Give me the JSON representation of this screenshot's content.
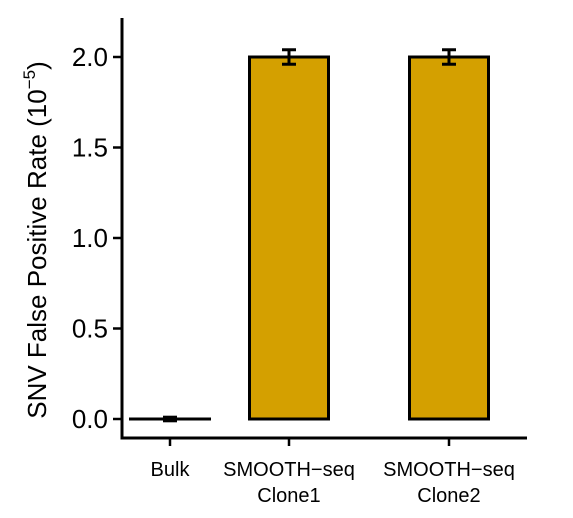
{
  "chart_data": {
    "type": "bar",
    "categories": [
      [
        "Bulk"
      ],
      [
        "SMOOTH−seq",
        "Clone1"
      ],
      [
        "SMOOTH−seq",
        "Clone2"
      ]
    ],
    "values": [
      0.0,
      2.0,
      2.0
    ],
    "error": [
      0.01,
      0.04,
      0.04
    ],
    "ylabel": "SNV False Positive Rate (10",
    "ylabel_exponent": "−5",
    "ylabel_close": ")",
    "ylim": [
      0.0,
      2.2
    ],
    "yticks": [
      0.0,
      0.5,
      1.0,
      1.5,
      2.0
    ],
    "ytick_labels": [
      "0.0",
      "0.5",
      "1.0",
      "1.5",
      "2.0"
    ],
    "grid": false,
    "colors": {
      "bar": "#D4A000",
      "stroke": "#000000"
    }
  }
}
